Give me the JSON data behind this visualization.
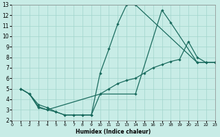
{
  "xlabel": "Humidex (Indice chaleur)",
  "xlim": [
    0,
    23
  ],
  "ylim": [
    2,
    13
  ],
  "xticks": [
    0,
    1,
    2,
    3,
    4,
    5,
    6,
    7,
    8,
    9,
    10,
    11,
    12,
    13,
    14,
    15,
    16,
    17,
    18,
    19,
    20,
    21,
    22,
    23
  ],
  "yticks": [
    2,
    3,
    4,
    5,
    6,
    7,
    8,
    9,
    10,
    11,
    12,
    13
  ],
  "bg_color": "#c8ece6",
  "grid_color": "#a0d4cc",
  "line_color": "#1a6b5e",
  "line1_x": [
    1,
    2,
    3,
    4,
    5,
    6,
    7,
    8,
    9,
    10,
    11,
    12,
    13,
    14,
    21,
    22,
    23
  ],
  "line1_y": [
    5,
    4.5,
    3.5,
    3.2,
    2.8,
    2.5,
    2.5,
    2.5,
    2.5,
    6.5,
    8.8,
    11.2,
    13.0,
    13.0,
    7.5,
    7.5,
    7.5
  ],
  "line2_x": [
    1,
    2,
    3,
    4,
    10,
    14,
    17,
    18,
    21,
    22,
    23
  ],
  "line2_y": [
    5,
    4.5,
    3.3,
    3.0,
    4.5,
    4.5,
    12.5,
    11.3,
    7.5,
    7.5,
    7.5
  ],
  "line3_x": [
    1,
    2,
    3,
    4,
    5,
    6,
    7,
    8,
    9,
    10,
    11,
    12,
    13,
    14,
    15,
    16,
    17,
    18,
    19,
    20,
    21,
    22,
    23
  ],
  "line3_y": [
    5,
    4.5,
    3.2,
    3.0,
    2.8,
    2.5,
    2.5,
    2.5,
    2.5,
    4.5,
    5.0,
    5.5,
    5.8,
    6.0,
    6.5,
    7.0,
    7.3,
    7.6,
    7.8,
    9.5,
    8.0,
    7.5,
    7.5
  ]
}
